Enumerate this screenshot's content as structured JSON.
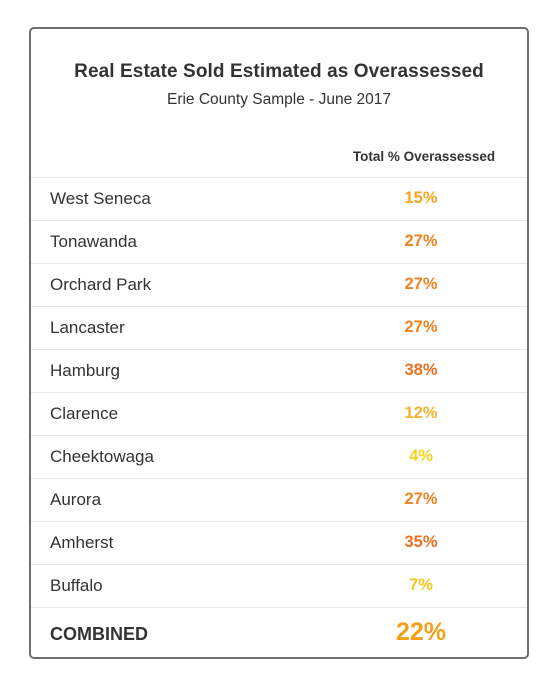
{
  "chart_data": {
    "type": "table",
    "title": "Real Estate Sold Estimated as Overassessed",
    "subtitle": "Erie County Sample - June 2017",
    "column_header": "Total % Overassessed",
    "rows": [
      {
        "name": "West Seneca",
        "value": 15,
        "label": "15%",
        "color": "#f5a623"
      },
      {
        "name": "Tonawanda",
        "value": 27,
        "label": "27%",
        "color": "#f5821f"
      },
      {
        "name": "Orchard Park",
        "value": 27,
        "label": "27%",
        "color": "#f5821f"
      },
      {
        "name": "Lancaster",
        "value": 27,
        "label": "27%",
        "color": "#f5821f"
      },
      {
        "name": "Hamburg",
        "value": 38,
        "label": "38%",
        "color": "#f26f21"
      },
      {
        "name": "Clarence",
        "value": 12,
        "label": "12%",
        "color": "#f7b32b"
      },
      {
        "name": "Cheektowaga",
        "value": 4,
        "label": "4%",
        "color": "#f7d21e"
      },
      {
        "name": "Aurora",
        "value": 27,
        "label": "27%",
        "color": "#f5821f"
      },
      {
        "name": "Amherst",
        "value": 35,
        "label": "35%",
        "color": "#f26f21"
      },
      {
        "name": "Buffalo",
        "value": 7,
        "label": "7%",
        "color": "#f7c61e"
      }
    ],
    "combined": {
      "name": "COMBINED",
      "value": 22,
      "label": "22%",
      "color": "#f5a01a"
    }
  }
}
